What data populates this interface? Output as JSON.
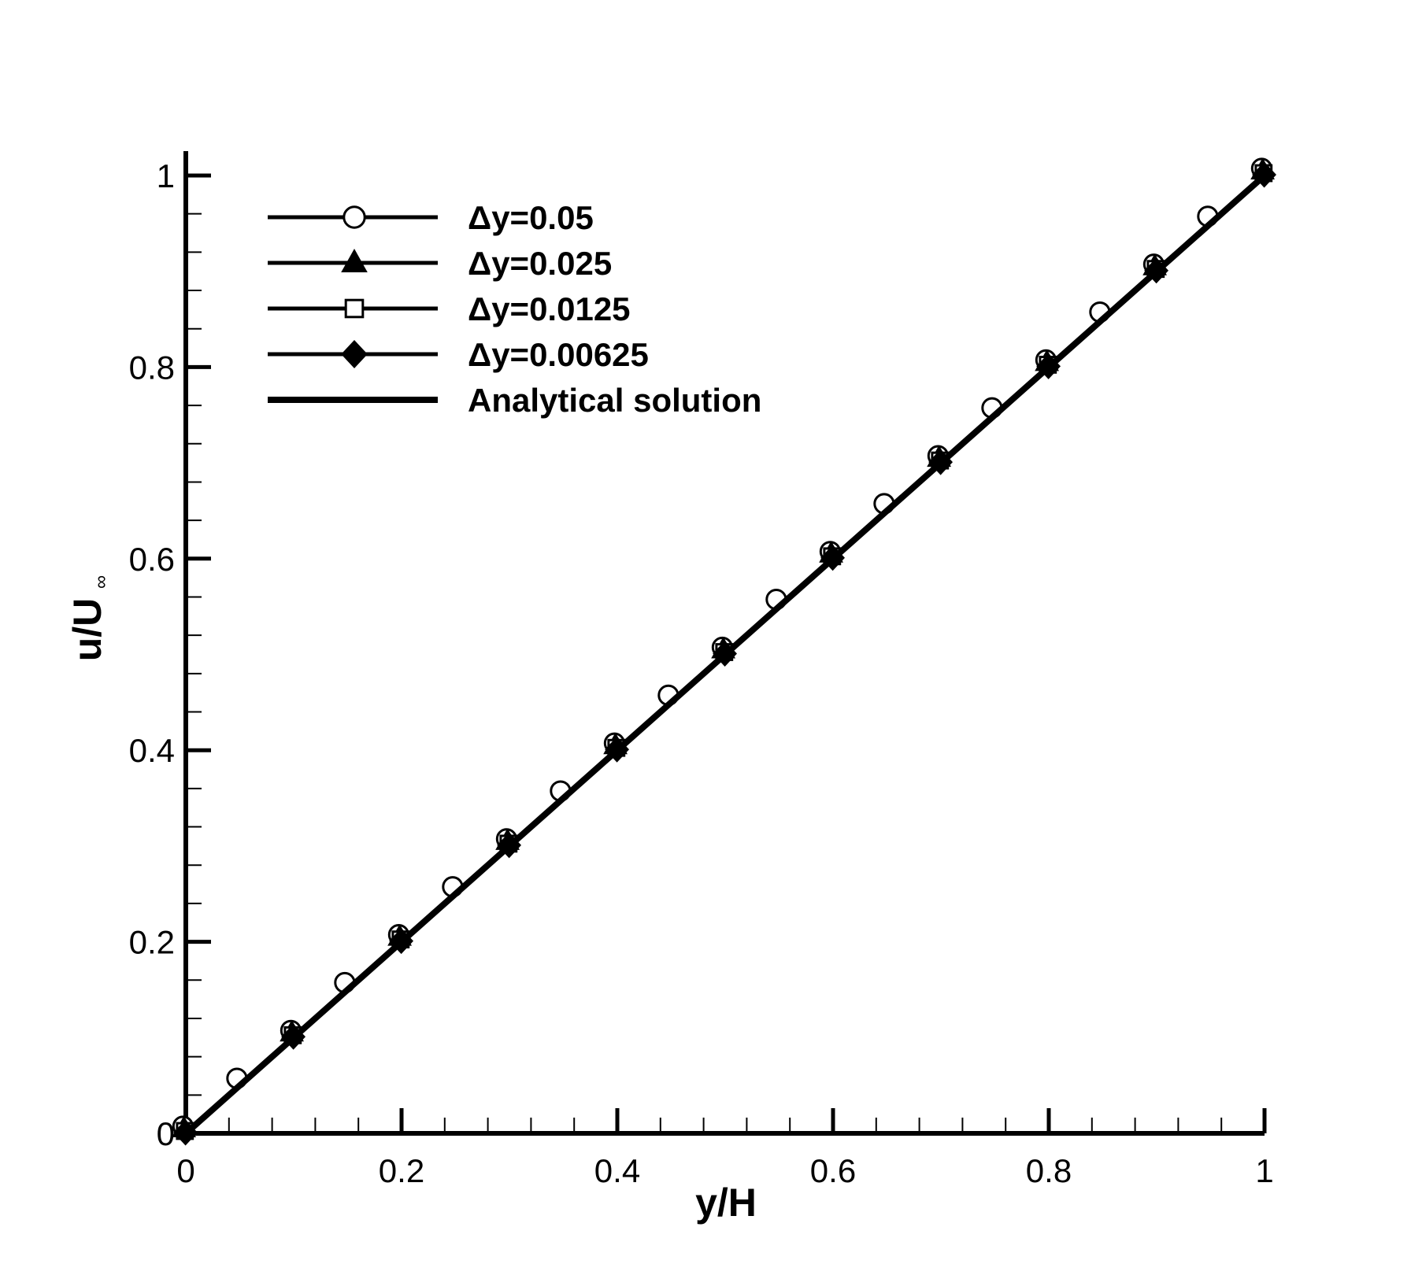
{
  "chart_data": {
    "type": "line",
    "xlabel": "y/H",
    "ylabel_main": "u/U",
    "ylabel_sub": "∞",
    "xlim": [
      0,
      1
    ],
    "ylim": [
      0,
      1
    ],
    "x_ticks": [
      "0",
      "0.2",
      "0.4",
      "0.6",
      "0.8",
      "1"
    ],
    "y_ticks": [
      "0",
      "0.2",
      "0.4",
      "0.6",
      "0.8",
      "1"
    ],
    "grid": false,
    "legend_position": "top-left",
    "series": [
      {
        "name": "Δy=0.05",
        "marker": "circle",
        "x": [
          0,
          0.05,
          0.1,
          0.15,
          0.2,
          0.25,
          0.3,
          0.35,
          0.4,
          0.45,
          0.5,
          0.55,
          0.6,
          0.65,
          0.7,
          0.75,
          0.8,
          0.85,
          0.9,
          0.95,
          1.0
        ],
        "y": [
          0,
          0.05,
          0.1,
          0.15,
          0.2,
          0.25,
          0.3,
          0.35,
          0.4,
          0.45,
          0.5,
          0.55,
          0.6,
          0.65,
          0.7,
          0.75,
          0.8,
          0.85,
          0.9,
          0.95,
          1.0
        ]
      },
      {
        "name": "Δy=0.025",
        "marker": "triangle",
        "x": [
          0,
          0.1,
          0.2,
          0.3,
          0.4,
          0.5,
          0.6,
          0.7,
          0.8,
          0.9,
          1.0
        ],
        "y": [
          0,
          0.1,
          0.2,
          0.3,
          0.4,
          0.5,
          0.6,
          0.7,
          0.8,
          0.9,
          1.0
        ]
      },
      {
        "name": "Δy=0.0125",
        "marker": "square",
        "x": [
          0,
          0.1,
          0.2,
          0.3,
          0.4,
          0.5,
          0.6,
          0.7,
          0.8,
          0.9,
          1.0
        ],
        "y": [
          0,
          0.1,
          0.2,
          0.3,
          0.4,
          0.5,
          0.6,
          0.7,
          0.8,
          0.9,
          1.0
        ]
      },
      {
        "name": "Δy=0.00625",
        "marker": "diamond",
        "x": [
          0,
          0.1,
          0.2,
          0.3,
          0.4,
          0.5,
          0.6,
          0.7,
          0.8,
          0.9,
          1.0
        ],
        "y": [
          0,
          0.1,
          0.2,
          0.3,
          0.4,
          0.5,
          0.6,
          0.7,
          0.8,
          0.9,
          1.0
        ]
      },
      {
        "name": "Analytical solution",
        "marker": "none",
        "x": [
          0,
          1
        ],
        "y": [
          0,
          1
        ]
      }
    ]
  }
}
